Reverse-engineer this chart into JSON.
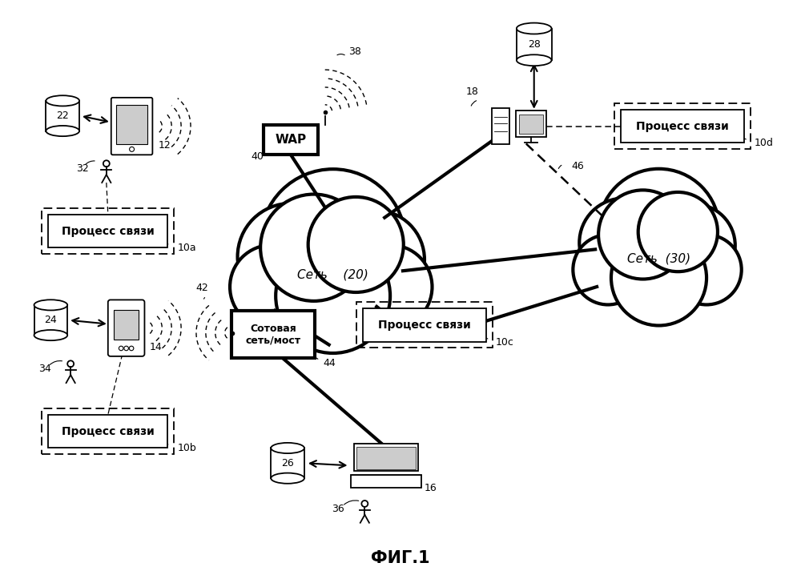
{
  "title": "ФИГ.1",
  "background_color": "#ffffff",
  "figsize": [
    10.0,
    7.28
  ],
  "dpi": 100,
  "labels": {
    "network20": "Сеть    (20)",
    "network30": "Сеть  (30)",
    "wap": "WAP",
    "process_a": "Процесс связи",
    "process_b": "Процесс связи",
    "process_c": "Процесс связи",
    "process_d": "Процесс связи",
    "cellular": "Сотовая\nсеть/мост",
    "num_22": "22",
    "num_12": "12",
    "num_32": "32",
    "num_10a": "10a",
    "num_24": "24",
    "num_14": "14",
    "num_34": "34",
    "num_10b": "10b",
    "num_38": "38",
    "num_40": "40",
    "num_42": "42",
    "num_44": "44",
    "num_18": "18",
    "num_28": "28",
    "num_46": "46",
    "num_10d": "10d",
    "num_26": "26",
    "num_16": "16",
    "num_36": "36",
    "num_10c": "10c"
  }
}
